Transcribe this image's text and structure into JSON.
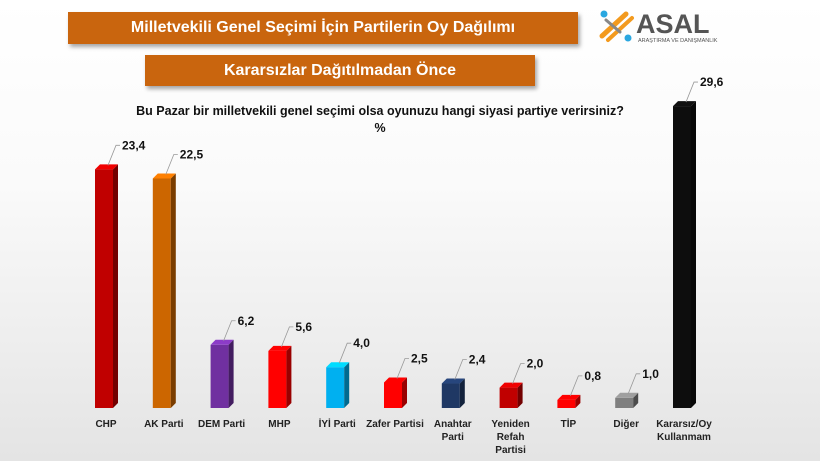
{
  "header": {
    "title": "Milletvekili Genel Seçimi İçin Partilerin Oy Dağılımı",
    "subtitle": "Kararsızlar Dağıtılmadan Önce"
  },
  "logo": {
    "name": "ASAL",
    "tagline": "ARAŞTIRMA VE DANIŞMANLIK",
    "colors": [
      "#f39a1e",
      "#2aa7e0"
    ]
  },
  "chart_data": {
    "type": "bar",
    "title": "Bu Pazar bir milletvekili genel seçimi olsa oyunuzu hangi siyasi partiye verirsiniz?",
    "subtitle": "%",
    "categories": [
      "CHP",
      "AK Parti",
      "DEM Parti",
      "MHP",
      "İYİ Parti",
      "Zafer Partisi",
      "Anahtar Parti",
      "Yeniden Refah Partisi",
      "TİP",
      "Diğer",
      "Kararsız/Oy Kullanmam"
    ],
    "category_lines": [
      [
        "CHP"
      ],
      [
        "AK Parti"
      ],
      [
        "DEM Parti"
      ],
      [
        "MHP"
      ],
      [
        "İYİ Parti"
      ],
      [
        "Zafer Partisi"
      ],
      [
        "Anahtar",
        "Parti"
      ],
      [
        "Yeniden",
        "Refah",
        "Partisi"
      ],
      [
        "TİP"
      ],
      [
        "Diğer"
      ],
      [
        "Kararsız/Oy",
        "Kullanmam"
      ]
    ],
    "values": [
      23.4,
      22.5,
      6.2,
      5.6,
      4.0,
      2.5,
      2.4,
      2.0,
      0.8,
      1.0,
      29.6
    ],
    "labels": [
      "23,4",
      "22,5",
      "6,2",
      "5,6",
      "4,0",
      "2,5",
      "2,4",
      "2,0",
      "0,8",
      "1,0",
      "29,6"
    ],
    "colors": [
      "#c00000",
      "#cc6600",
      "#7030a0",
      "#ff0000",
      "#00b0f0",
      "#ff0000",
      "#1f3864",
      "#c00000",
      "#ff0000",
      "#7f7f7f",
      "#0d0d0d"
    ],
    "ylim": [
      0,
      30
    ],
    "grid": false,
    "legend": "none"
  }
}
